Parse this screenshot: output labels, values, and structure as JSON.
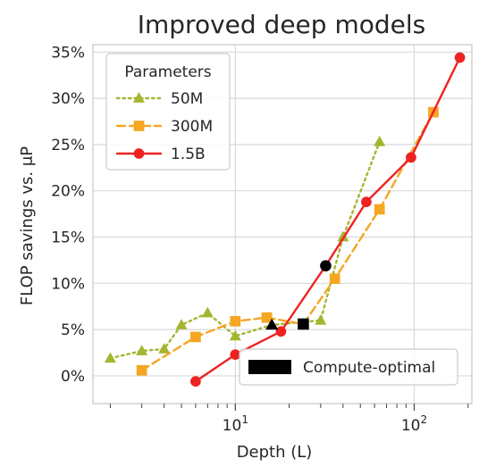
{
  "chart_data": {
    "type": "line",
    "title": "Improved deep models",
    "xlabel": "Depth (L)",
    "ylabel": "FLOP savings vs. μP",
    "xscale": "log",
    "xlim": [
      1.6,
      210
    ],
    "ylim": [
      -3,
      35.8
    ],
    "x_tick_labels": [
      {
        "value": 10,
        "base": "10",
        "exp": "1"
      },
      {
        "value": 100,
        "base": "10",
        "exp": "2"
      }
    ],
    "y_ticks": [
      0,
      5,
      10,
      15,
      20,
      25,
      30,
      35
    ],
    "y_tick_labels": [
      "0%",
      "5%",
      "10%",
      "15%",
      "20%",
      "25%",
      "30%",
      "35%"
    ],
    "grid": true,
    "legend": {
      "title": "Parameters",
      "placement": "top-left"
    },
    "series": [
      {
        "name": "50M",
        "color": "#a5b530",
        "line_style": "dotted",
        "marker": "triangle",
        "x": [
          2,
          3,
          4,
          5,
          7,
          10,
          16,
          30,
          40,
          64
        ],
        "y": [
          1.9,
          2.7,
          2.9,
          5.5,
          6.8,
          4.3,
          5.5,
          6.0,
          15.0,
          25.3
        ]
      },
      {
        "name": "300M",
        "color": "#f5a623",
        "line_style": "dashed",
        "marker": "square",
        "x": [
          3,
          6,
          10,
          15,
          24,
          36,
          64,
          128
        ],
        "y": [
          0.6,
          4.2,
          5.9,
          6.3,
          5.6,
          10.5,
          18.0,
          28.5
        ]
      },
      {
        "name": "1.5B",
        "color": "#ee2222",
        "line_style": "solid",
        "marker": "circle",
        "x": [
          6,
          10,
          18,
          32,
          54,
          96,
          180
        ],
        "y": [
          -0.6,
          2.3,
          4.8,
          11.9,
          18.8,
          23.6,
          34.4
        ]
      }
    ],
    "compute_optimal": {
      "label": "Compute-optimal",
      "color": "#000000",
      "points": [
        {
          "series": "50M",
          "x": 16,
          "y": 5.5,
          "marker": "triangle"
        },
        {
          "series": "300M",
          "x": 24,
          "y": 5.6,
          "marker": "square"
        },
        {
          "series": "1.5B",
          "x": 32,
          "y": 11.9,
          "marker": "circle"
        }
      ]
    }
  }
}
